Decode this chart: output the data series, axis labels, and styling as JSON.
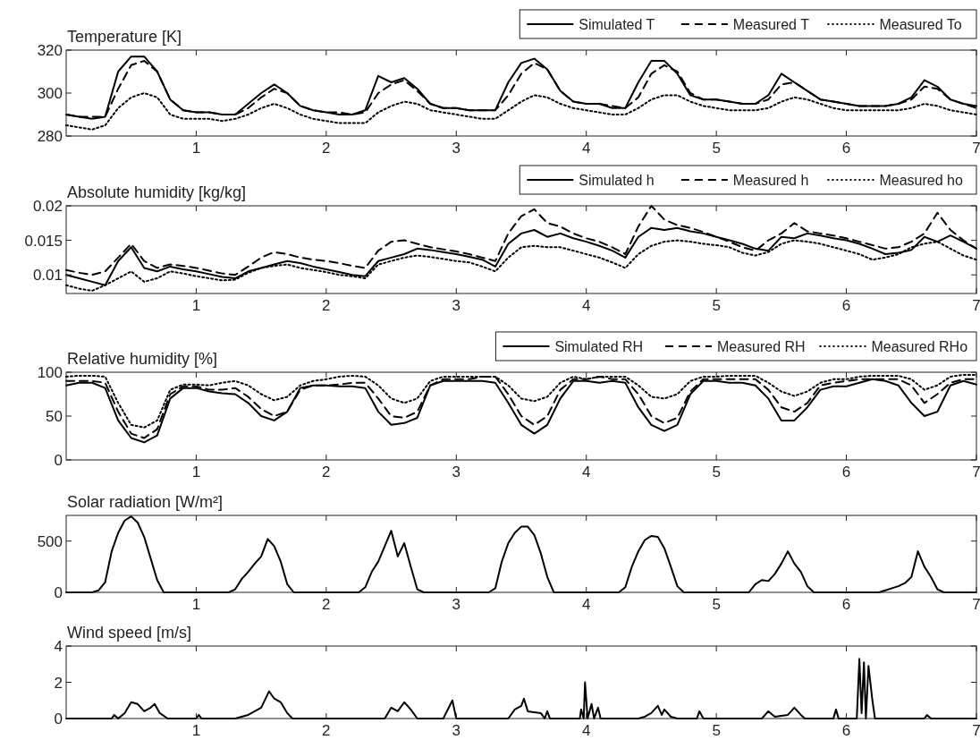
{
  "chart_data": [
    {
      "type": "line",
      "title": "Temperature [K]",
      "x": [
        0,
        0.1,
        0.2,
        0.3,
        0.4,
        0.5,
        0.6,
        0.7,
        0.8,
        0.9,
        1,
        1.1,
        1.2,
        1.3,
        1.4,
        1.5,
        1.6,
        1.7,
        1.8,
        1.9,
        2,
        2.1,
        2.2,
        2.3,
        2.4,
        2.5,
        2.6,
        2.7,
        2.8,
        2.9,
        3,
        3.1,
        3.2,
        3.3,
        3.4,
        3.5,
        3.6,
        3.7,
        3.8,
        3.9,
        4,
        4.1,
        4.2,
        4.3,
        4.4,
        4.5,
        4.6,
        4.7,
        4.8,
        4.9,
        5,
        5.1,
        5.2,
        5.3,
        5.4,
        5.5,
        5.6,
        5.7,
        5.8,
        5.9,
        6,
        6.1,
        6.2,
        6.3,
        6.4,
        6.5,
        6.6,
        6.7,
        6.8,
        6.9,
        7
      ],
      "xlim": [
        0,
        7
      ],
      "xticks": [
        1,
        2,
        3,
        4,
        5,
        6,
        7
      ],
      "ylim": [
        280,
        320
      ],
      "yticks": [
        280,
        300,
        320
      ],
      "legend": "top right",
      "series": [
        {
          "name": "Simulated T",
          "color": "#000000",
          "line_style": "solid",
          "values": [
            290,
            289,
            288,
            289,
            310,
            317,
            317,
            310,
            297,
            292,
            291,
            291,
            290,
            290,
            295,
            300,
            304,
            300,
            294,
            292,
            291,
            290,
            290,
            292,
            308,
            305,
            307,
            302,
            295,
            293,
            293,
            292,
            292,
            292,
            305,
            314,
            316,
            311,
            301,
            296,
            295,
            295,
            293,
            293,
            305,
            315,
            315,
            309,
            299,
            297,
            297,
            296,
            295,
            295,
            299,
            309,
            305,
            301,
            297,
            296,
            295,
            294,
            294,
            294,
            295,
            298,
            306,
            303,
            297,
            295,
            294
          ]
        },
        {
          "name": "Measured T",
          "color": "#000000",
          "line_style": "dashed",
          "values": [
            290,
            289,
            289,
            289,
            302,
            313,
            315,
            310,
            297,
            292,
            291,
            291,
            290,
            290,
            293,
            298,
            302,
            300,
            294,
            292,
            291,
            291,
            290,
            291,
            300,
            304,
            306,
            301,
            295,
            293,
            293,
            292,
            292,
            292,
            299,
            309,
            314,
            311,
            301,
            296,
            295,
            295,
            294,
            293,
            298,
            309,
            313,
            310,
            300,
            297,
            297,
            296,
            295,
            295,
            297,
            304,
            305,
            301,
            297,
            296,
            295,
            294,
            294,
            294,
            295,
            297,
            303,
            302,
            297,
            295,
            293
          ]
        },
        {
          "name": "Measured To",
          "color": "#000000",
          "line_style": "dotted",
          "values": [
            285,
            284,
            283,
            285,
            293,
            298,
            300,
            298,
            290,
            288,
            288,
            288,
            287,
            288,
            290,
            293,
            295,
            293,
            290,
            288,
            287,
            286,
            286,
            286,
            291,
            294,
            296,
            295,
            292,
            291,
            290,
            289,
            288,
            288,
            292,
            296,
            299,
            298,
            295,
            293,
            292,
            291,
            290,
            290,
            293,
            297,
            299,
            299,
            296,
            294,
            293,
            292,
            292,
            292,
            293,
            296,
            298,
            297,
            295,
            293,
            292,
            292,
            292,
            292,
            292,
            293,
            295,
            294,
            292,
            291,
            290
          ]
        }
      ]
    },
    {
      "type": "line",
      "title": "Absolute humidity [kg/kg]",
      "x": [
        0,
        0.1,
        0.2,
        0.3,
        0.4,
        0.5,
        0.6,
        0.7,
        0.8,
        0.9,
        1,
        1.1,
        1.2,
        1.3,
        1.4,
        1.5,
        1.6,
        1.7,
        1.8,
        1.9,
        2,
        2.1,
        2.2,
        2.3,
        2.4,
        2.5,
        2.6,
        2.7,
        2.8,
        2.9,
        3,
        3.1,
        3.2,
        3.3,
        3.4,
        3.5,
        3.6,
        3.7,
        3.8,
        3.9,
        4,
        4.1,
        4.2,
        4.3,
        4.4,
        4.5,
        4.6,
        4.7,
        4.8,
        4.9,
        5,
        5.1,
        5.2,
        5.3,
        5.4,
        5.5,
        5.6,
        5.7,
        5.8,
        5.9,
        6,
        6.1,
        6.2,
        6.3,
        6.4,
        6.5,
        6.6,
        6.7,
        6.8,
        6.9,
        7
      ],
      "xlim": [
        0,
        7
      ],
      "xticks": [
        1,
        2,
        3,
        4,
        5,
        6,
        7
      ],
      "ylim": [
        0.0073,
        0.02
      ],
      "yticks": [
        0.01,
        0.015,
        0.02
      ],
      "legend": "top right",
      "series": [
        {
          "name": "Simulated h",
          "color": "#000000",
          "line_style": "solid",
          "values": [
            0.01,
            0.0095,
            0.009,
            0.0085,
            0.012,
            0.014,
            0.011,
            0.0105,
            0.0112,
            0.0108,
            0.0105,
            0.0101,
            0.0097,
            0.0095,
            0.0105,
            0.011,
            0.0115,
            0.012,
            0.0117,
            0.0112,
            0.0108,
            0.0104,
            0.01,
            0.0098,
            0.012,
            0.0125,
            0.013,
            0.0138,
            0.0136,
            0.0133,
            0.013,
            0.0126,
            0.0122,
            0.0112,
            0.0145,
            0.016,
            0.0165,
            0.0155,
            0.016,
            0.0153,
            0.0148,
            0.0142,
            0.0135,
            0.0125,
            0.0155,
            0.0168,
            0.0165,
            0.0168,
            0.0163,
            0.016,
            0.0155,
            0.015,
            0.0145,
            0.0138,
            0.0135,
            0.0155,
            0.0153,
            0.016,
            0.0157,
            0.0153,
            0.015,
            0.0145,
            0.0138,
            0.013,
            0.0132,
            0.0136,
            0.0155,
            0.0148,
            0.0157,
            0.0148,
            0.0138
          ]
        },
        {
          "name": "Measured h",
          "color": "#000000",
          "line_style": "dashed",
          "values": [
            0.0107,
            0.0103,
            0.01,
            0.0105,
            0.0125,
            0.0145,
            0.012,
            0.011,
            0.0115,
            0.0113,
            0.011,
            0.0106,
            0.0102,
            0.01,
            0.0112,
            0.0125,
            0.0133,
            0.013,
            0.0125,
            0.0122,
            0.012,
            0.0117,
            0.0113,
            0.011,
            0.0135,
            0.0148,
            0.015,
            0.0145,
            0.014,
            0.0137,
            0.0134,
            0.013,
            0.0125,
            0.012,
            0.016,
            0.0185,
            0.0195,
            0.0175,
            0.017,
            0.016,
            0.0153,
            0.0148,
            0.014,
            0.013,
            0.017,
            0.02,
            0.018,
            0.0172,
            0.0168,
            0.0162,
            0.0155,
            0.0148,
            0.014,
            0.0135,
            0.015,
            0.016,
            0.0175,
            0.0163,
            0.016,
            0.0157,
            0.0153,
            0.0148,
            0.0143,
            0.0138,
            0.014,
            0.0148,
            0.016,
            0.019,
            0.0165,
            0.015,
            0.0138
          ]
        },
        {
          "name": "Measured ho",
          "color": "#000000",
          "line_style": "dotted",
          "values": [
            0.0085,
            0.008,
            0.0077,
            0.0085,
            0.0095,
            0.0105,
            0.009,
            0.0095,
            0.0105,
            0.0102,
            0.0098,
            0.0095,
            0.0092,
            0.0093,
            0.0103,
            0.011,
            0.0113,
            0.0115,
            0.011,
            0.0107,
            0.0104,
            0.01,
            0.0098,
            0.0095,
            0.0115,
            0.012,
            0.0125,
            0.0128,
            0.0126,
            0.0123,
            0.012,
            0.0118,
            0.0112,
            0.0105,
            0.0125,
            0.014,
            0.0142,
            0.014,
            0.014,
            0.0135,
            0.013,
            0.0125,
            0.0118,
            0.011,
            0.013,
            0.0142,
            0.0148,
            0.015,
            0.0148,
            0.0145,
            0.0143,
            0.014,
            0.0132,
            0.0128,
            0.0133,
            0.0145,
            0.015,
            0.0148,
            0.0145,
            0.014,
            0.0135,
            0.013,
            0.0122,
            0.0125,
            0.013,
            0.014,
            0.0145,
            0.0148,
            0.0138,
            0.0128,
            0.0122
          ]
        }
      ]
    },
    {
      "type": "line",
      "title": "Relative humidity [%]",
      "x": [
        0,
        0.1,
        0.2,
        0.3,
        0.4,
        0.5,
        0.6,
        0.7,
        0.8,
        0.9,
        1,
        1.1,
        1.2,
        1.3,
        1.4,
        1.5,
        1.6,
        1.7,
        1.8,
        1.9,
        2,
        2.1,
        2.2,
        2.3,
        2.4,
        2.5,
        2.6,
        2.7,
        2.8,
        2.9,
        3,
        3.1,
        3.2,
        3.3,
        3.4,
        3.5,
        3.6,
        3.7,
        3.8,
        3.9,
        4,
        4.1,
        4.2,
        4.3,
        4.4,
        4.5,
        4.6,
        4.7,
        4.8,
        4.9,
        5,
        5.1,
        5.2,
        5.3,
        5.4,
        5.5,
        5.6,
        5.7,
        5.8,
        5.9,
        6,
        6.1,
        6.2,
        6.3,
        6.4,
        6.5,
        6.6,
        6.7,
        6.8,
        6.9,
        7
      ],
      "xlim": [
        0,
        7
      ],
      "xticks": [
        1,
        2,
        3,
        4,
        5,
        6,
        7
      ],
      "ylim": [
        0,
        100
      ],
      "yticks": [
        0,
        50,
        100
      ],
      "legend": "top right",
      "series": [
        {
          "name": "Simulated RH",
          "color": "#000000",
          "line_style": "solid",
          "values": [
            85,
            88,
            88,
            82,
            45,
            25,
            20,
            28,
            70,
            82,
            82,
            78,
            76,
            75,
            65,
            50,
            45,
            55,
            82,
            85,
            85,
            84,
            84,
            82,
            55,
            40,
            42,
            48,
            85,
            90,
            90,
            90,
            90,
            88,
            65,
            40,
            30,
            40,
            70,
            90,
            90,
            88,
            90,
            88,
            60,
            40,
            33,
            40,
            75,
            90,
            90,
            88,
            88,
            85,
            70,
            45,
            45,
            60,
            80,
            84,
            84,
            88,
            92,
            90,
            85,
            65,
            50,
            55,
            85,
            90,
            86
          ]
        },
        {
          "name": "Measured RH",
          "color": "#000000",
          "line_style": "dashed",
          "values": [
            90,
            90,
            90,
            88,
            55,
            30,
            25,
            35,
            75,
            84,
            84,
            80,
            80,
            82,
            72,
            58,
            50,
            55,
            80,
            85,
            85,
            86,
            88,
            88,
            70,
            50,
            48,
            55,
            85,
            92,
            92,
            92,
            95,
            95,
            75,
            50,
            40,
            50,
            80,
            92,
            92,
            95,
            92,
            92,
            75,
            50,
            42,
            48,
            78,
            92,
            92,
            92,
            92,
            92,
            80,
            60,
            55,
            65,
            85,
            88,
            90,
            92,
            92,
            92,
            92,
            85,
            65,
            75,
            88,
            92,
            92
          ]
        },
        {
          "name": "Measured RHo",
          "color": "#000000",
          "line_style": "dotted",
          "values": [
            95,
            96,
            96,
            95,
            65,
            40,
            37,
            45,
            80,
            86,
            86,
            85,
            88,
            90,
            85,
            75,
            68,
            72,
            85,
            90,
            92,
            95,
            96,
            95,
            85,
            70,
            65,
            70,
            90,
            95,
            95,
            95,
            95,
            95,
            85,
            70,
            67,
            72,
            88,
            95,
            92,
            95,
            95,
            95,
            85,
            72,
            70,
            75,
            90,
            95,
            95,
            96,
            96,
            96,
            88,
            78,
            73,
            78,
            88,
            92,
            92,
            95,
            96,
            96,
            96,
            92,
            80,
            85,
            95,
            97,
            97
          ]
        }
      ]
    },
    {
      "type": "line",
      "title": "Solar radiation [W/m²]",
      "x": [
        0,
        0.05,
        0.1,
        0.15,
        0.2,
        0.25,
        0.3,
        0.35,
        0.4,
        0.45,
        0.5,
        0.55,
        0.6,
        0.65,
        0.7,
        0.75,
        0.8,
        0.85,
        0.9,
        0.95,
        1,
        1.05,
        1.1,
        1.15,
        1.2,
        1.25,
        1.3,
        1.35,
        1.4,
        1.45,
        1.5,
        1.55,
        1.6,
        1.65,
        1.7,
        1.75,
        1.8,
        1.85,
        1.9,
        1.95,
        2,
        2.05,
        2.1,
        2.15,
        2.2,
        2.25,
        2.3,
        2.35,
        2.4,
        2.45,
        2.5,
        2.55,
        2.6,
        2.65,
        2.7,
        2.75,
        2.8,
        2.85,
        2.9,
        2.95,
        3,
        3.05,
        3.1,
        3.15,
        3.2,
        3.25,
        3.3,
        3.35,
        3.4,
        3.45,
        3.5,
        3.55,
        3.6,
        3.65,
        3.7,
        3.75,
        3.8,
        3.85,
        3.9,
        3.95,
        4,
        4.05,
        4.1,
        4.15,
        4.2,
        4.25,
        4.3,
        4.35,
        4.4,
        4.45,
        4.5,
        4.55,
        4.6,
        4.65,
        4.7,
        4.75,
        4.8,
        4.85,
        4.9,
        4.95,
        5,
        5.05,
        5.1,
        5.15,
        5.2,
        5.25,
        5.3,
        5.35,
        5.4,
        5.45,
        5.5,
        5.55,
        5.6,
        5.65,
        5.7,
        5.75,
        5.8,
        5.85,
        5.9,
        5.95,
        6,
        6.05,
        6.1,
        6.15,
        6.2,
        6.25,
        6.3,
        6.35,
        6.4,
        6.45,
        6.5,
        6.55,
        6.6,
        6.65,
        6.7,
        6.75,
        6.8,
        6.85,
        6.9,
        6.95,
        7
      ],
      "xlim": [
        0,
        7
      ],
      "xticks": [
        1,
        2,
        3,
        4,
        5,
        6,
        7
      ],
      "ylim": [
        0,
        750
      ],
      "yticks": [
        0,
        500
      ],
      "series": [
        {
          "color": "#000000",
          "line_style": "solid",
          "values": [
            0,
            0,
            0,
            0,
            0,
            20,
            100,
            400,
            580,
            700,
            740,
            680,
            540,
            330,
            120,
            0,
            0,
            0,
            0,
            0,
            0,
            0,
            0,
            0,
            0,
            0,
            30,
            130,
            200,
            280,
            350,
            520,
            450,
            300,
            80,
            0,
            0,
            0,
            0,
            0,
            0,
            0,
            0,
            0,
            0,
            0,
            50,
            200,
            300,
            450,
            600,
            350,
            480,
            250,
            30,
            0,
            0,
            0,
            0,
            0,
            0,
            0,
            0,
            0,
            0,
            0,
            40,
            300,
            480,
            580,
            640,
            640,
            560,
            380,
            150,
            0,
            0,
            0,
            0,
            0,
            0,
            0,
            0,
            0,
            0,
            0,
            50,
            250,
            400,
            510,
            550,
            540,
            430,
            250,
            60,
            0,
            0,
            0,
            0,
            0,
            0,
            0,
            0,
            0,
            0,
            0,
            80,
            120,
            110,
            180,
            280,
            400,
            280,
            200,
            60,
            0,
            0,
            0,
            0,
            0,
            0,
            0,
            0,
            0,
            0,
            0,
            20,
            40,
            60,
            90,
            150,
            400,
            250,
            150,
            30,
            0,
            0,
            0,
            0,
            0,
            0
          ]
        }
      ]
    },
    {
      "type": "line",
      "title": "Wind speed [m/s]",
      "xlim": [
        0,
        7
      ],
      "xticks": [
        1,
        2,
        3,
        4,
        5,
        6,
        7
      ],
      "ylim": [
        0,
        4
      ],
      "yticks": [
        0,
        2,
        4
      ],
      "series": [
        {
          "color": "#000000",
          "line_style": "solid",
          "x": [
            0,
            0.35,
            0.37,
            0.4,
            0.45,
            0.5,
            0.55,
            0.6,
            0.65,
            0.68,
            0.72,
            0.78,
            1,
            1.02,
            1.04,
            1.3,
            1.4,
            1.5,
            1.56,
            1.6,
            1.65,
            1.7,
            1.74,
            2.45,
            2.5,
            2.55,
            2.6,
            2.65,
            2.7,
            2.9,
            2.97,
            3,
            3.4,
            3.45,
            3.5,
            3.52,
            3.55,
            3.65,
            3.68,
            3.7,
            3.72,
            3.95,
            3.96,
            3.98,
            3.99,
            4.01,
            4.04,
            4.06,
            4.09,
            4.11,
            4.4,
            4.45,
            4.5,
            4.55,
            4.58,
            4.6,
            4.65,
            4.7,
            4.85,
            4.87,
            4.9,
            5.35,
            5.4,
            5.45,
            5.55,
            5.6,
            5.65,
            5.68,
            5.9,
            5.92,
            5.94,
            6.08,
            6.1,
            6.117,
            6.135,
            6.15,
            6.17,
            6.2,
            6.22,
            6.6,
            6.62,
            6.65,
            7
          ],
          "values": [
            0,
            0,
            0.2,
            0,
            0.3,
            0.9,
            0.8,
            0.4,
            0.6,
            0.8,
            0.3,
            0,
            0,
            0.2,
            0,
            0,
            0.2,
            0.6,
            1.5,
            1.1,
            0.9,
            0.3,
            0,
            0,
            0.6,
            0.4,
            0.9,
            0.5,
            0,
            0,
            1,
            0,
            0,
            0.5,
            0.7,
            1.1,
            0.4,
            0.3,
            0,
            0.4,
            0,
            0,
            0.5,
            0,
            2,
            0,
            0.8,
            0,
            0.6,
            0,
            0,
            0.1,
            0.3,
            0.7,
            0.2,
            0.5,
            0.1,
            0,
            0,
            0.4,
            0,
            0,
            0.4,
            0.1,
            0.2,
            0.6,
            0.2,
            0,
            0,
            0.5,
            0,
            0,
            3.3,
            0.3,
            3.1,
            0,
            2.9,
            1,
            0,
            0,
            0.2,
            0,
            0
          ]
        }
      ]
    }
  ]
}
